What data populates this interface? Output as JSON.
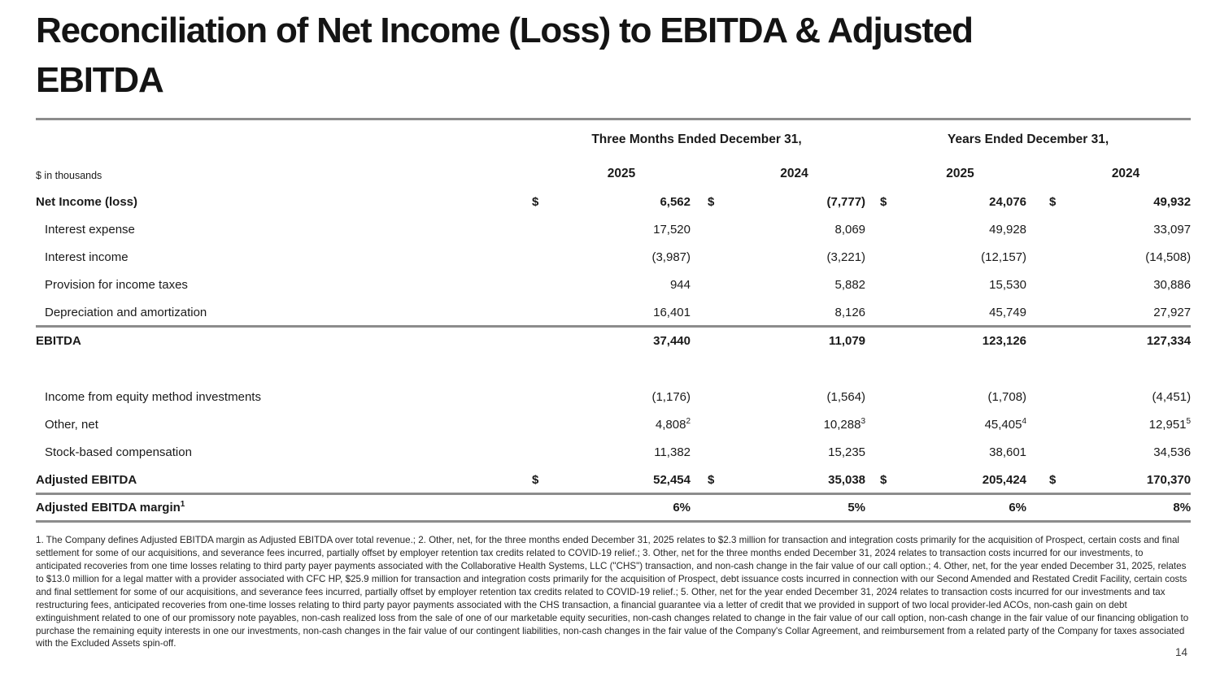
{
  "slide": {
    "title_lines": [
      "Reconciliation of Net Income (Loss) to EBITDA & Adjusted",
      "EBITDA"
    ],
    "page_number": "14"
  },
  "table": {
    "units_label": "$ in thousands",
    "col_groups": [
      "Three Months Ended December 31,",
      "Years Ended December 31,"
    ],
    "year_headers": [
      "2025",
      "2024",
      "2025",
      "2024"
    ],
    "rows": [
      {
        "label": "Net Income (loss)",
        "bold": true,
        "dollar": true,
        "values": [
          "6,562",
          "(7,777)",
          "24,076",
          "49,932"
        ]
      },
      {
        "label": "Interest expense",
        "indent": true,
        "values": [
          "17,520",
          "8,069",
          "49,928",
          "33,097"
        ]
      },
      {
        "label": "Interest income",
        "indent": true,
        "values": [
          "(3,987)",
          "(3,221)",
          "(12,157)",
          "(14,508)"
        ]
      },
      {
        "label": "Provision for income taxes",
        "indent": true,
        "values": [
          "944",
          "5,882",
          "15,530",
          "30,886"
        ]
      },
      {
        "label": "Depreciation and amortization",
        "indent": true,
        "values": [
          "16,401",
          "8,126",
          "45,749",
          "27,927"
        ]
      },
      {
        "label": "EBITDA",
        "bold": true,
        "rule_above": true,
        "values": [
          "37,440",
          "11,079",
          "123,126",
          "127,334"
        ]
      },
      {
        "spacer": true
      },
      {
        "label": "Income from equity method investments",
        "indent": true,
        "values": [
          "(1,176)",
          "(1,564)",
          "(1,708)",
          "(4,451)"
        ]
      },
      {
        "label": "Other, net",
        "indent": true,
        "values": [
          "4,808",
          "10,288",
          "45,405",
          "12,951"
        ],
        "value_sups": [
          "2",
          "3",
          "4",
          "5"
        ]
      },
      {
        "label": "Stock-based compensation",
        "indent": true,
        "values": [
          "11,382",
          "15,235",
          "38,601",
          "34,536"
        ]
      },
      {
        "label": "Adjusted EBITDA",
        "bold": true,
        "dollar": true,
        "values": [
          "52,454",
          "35,038",
          "205,424",
          "170,370"
        ]
      },
      {
        "label": "Adjusted EBITDA margin",
        "label_sup": "1",
        "bold": true,
        "rule_above": true,
        "rule_below": true,
        "values": [
          "6%",
          "5%",
          "6%",
          "8%"
        ]
      }
    ]
  },
  "footnote": "1. The Company defines Adjusted EBITDA margin as Adjusted EBITDA over total revenue.; 2. Other, net, for the three months ended December 31, 2025 relates to $2.3 million for transaction and integration costs primarily for the acquisition of Prospect, certain costs and final settlement for some of our acquisitions, and severance fees incurred, partially offset by employer retention tax credits related to COVID-19 relief.; 3. Other, net for the three months ended December 31, 2024 relates to transaction costs incurred for our investments, to anticipated recoveries from one time losses relating to third party payer payments associated with the Collaborative Health Systems, LLC (\"CHS\") transaction, and non-cash change in the fair value of our call option.; 4. Other, net, for the year ended December 31, 2025, relates to $13.0 million for a legal matter with a provider associated with CFC HP, $25.9 million for transaction and integration costs primarily for the acquisition of Prospect, debt issuance costs incurred in connection with our Second Amended and Restated Credit Facility, certain costs and final settlement for some of our acquisitions, and severance fees incurred, partially offset by employer retention tax credits related to COVID-19 relief.; 5. Other, net for the year ended December 31, 2024 relates to transaction costs incurred for our investments and tax restructuring fees, anticipated recoveries from one-time losses relating to third party payor payments associated with the CHS transaction, a financial guarantee via a letter of credit that we provided in support of two local provider-led ACOs, non-cash gain on debt extinguishment related to one of our promissory note payables, non-cash realized loss from the sale of one of our marketable equity securities, non-cash changes related to change in the fair value of our call option, non-cash change in the fair value of our financing obligation to purchase the remaining equity interests in one our investments, non-cash changes in the fair value of our contingent liabilities, non-cash changes in the fair value of the Company's Collar Agreement, and reimbursement from a related party of the Company for taxes associated with the Excluded Assets spin-off.",
  "colors": {
    "rule_gray": "#8c8c8c",
    "text": "#1a1a1a"
  }
}
